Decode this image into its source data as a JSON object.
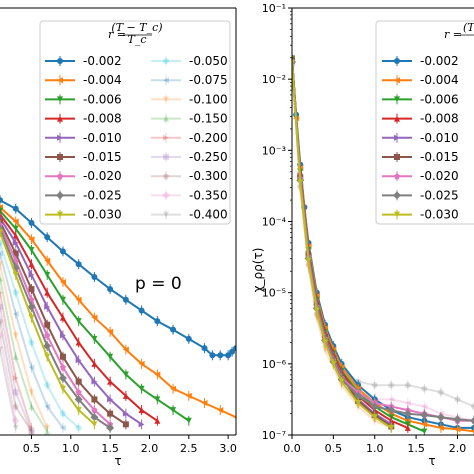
{
  "chart_data": [
    {
      "type": "line",
      "xlabel": "τ",
      "ylabel": "",
      "xlim": [
        0.1,
        3.1
      ],
      "xticks": [
        "0.5",
        "1.0",
        "1.5",
        "2.0",
        "2.5",
        "3.0"
      ],
      "annotation": "p = 0",
      "legend": {
        "title_lhs": "r = ",
        "title_num": "(T − T_c)",
        "title_den": "T_c",
        "placement": "upper-left"
      },
      "series": [
        {
          "name": "-0.002",
          "color": "#1f77b4",
          "alpha": 1.0,
          "x": [
            0.1,
            0.3,
            0.5,
            0.7,
            0.9,
            1.1,
            1.3,
            1.5,
            1.7,
            1.9,
            2.1,
            2.3,
            2.5,
            2.7,
            2.8,
            2.9,
            3.0,
            3.05,
            3.1
          ],
          "y": [
            -3.7,
            -3.82,
            -4.02,
            -4.22,
            -4.42,
            -4.6,
            -4.78,
            -4.95,
            -5.1,
            -5.25,
            -5.4,
            -5.52,
            -5.65,
            -5.78,
            -5.88,
            -5.88,
            -5.88,
            -5.83,
            -5.78
          ]
        },
        {
          "name": "-0.004",
          "color": "#ff7f0e",
          "alpha": 1.0,
          "x": [
            0.1,
            0.3,
            0.5,
            0.7,
            0.9,
            1.1,
            1.3,
            1.5,
            1.7,
            1.9,
            2.1,
            2.3,
            2.5,
            2.7,
            2.9,
            3.1
          ],
          "y": [
            -3.8,
            -4.0,
            -4.25,
            -4.55,
            -4.85,
            -5.1,
            -5.35,
            -5.55,
            -5.8,
            -6.0,
            -6.15,
            -6.35,
            -6.45,
            -6.55,
            -6.65,
            -6.75
          ]
        },
        {
          "name": "-0.006",
          "color": "#2ca02c",
          "alpha": 1.0,
          "x": [
            0.1,
            0.3,
            0.5,
            0.7,
            0.9,
            1.1,
            1.3,
            1.5,
            1.7,
            1.9,
            2.1,
            2.3,
            2.5
          ],
          "y": [
            -3.85,
            -4.1,
            -4.4,
            -4.75,
            -5.1,
            -5.4,
            -5.65,
            -5.9,
            -6.15,
            -6.35,
            -6.5,
            -6.65,
            -6.8
          ]
        },
        {
          "name": "-0.008",
          "color": "#d62728",
          "alpha": 1.0,
          "x": [
            0.1,
            0.3,
            0.5,
            0.7,
            0.9,
            1.1,
            1.3,
            1.5,
            1.7,
            1.9,
            2.1
          ],
          "y": [
            -3.9,
            -4.2,
            -4.6,
            -5.0,
            -5.35,
            -5.7,
            -6.0,
            -6.25,
            -6.45,
            -6.65,
            -6.8
          ]
        },
        {
          "name": "-0.010",
          "color": "#9467bd",
          "alpha": 1.0,
          "x": [
            0.1,
            0.3,
            0.5,
            0.7,
            0.9,
            1.1,
            1.3,
            1.5,
            1.7,
            1.9
          ],
          "y": [
            -3.95,
            -4.3,
            -4.75,
            -5.2,
            -5.6,
            -5.95,
            -6.25,
            -6.5,
            -6.7,
            -6.85
          ]
        },
        {
          "name": "-0.015",
          "color": "#8c564b",
          "alpha": 1.0,
          "x": [
            0.1,
            0.3,
            0.5,
            0.7,
            0.9,
            1.1,
            1.3,
            1.5,
            1.7
          ],
          "y": [
            -4.0,
            -4.45,
            -4.95,
            -5.45,
            -5.9,
            -6.25,
            -6.5,
            -6.7,
            -6.85
          ]
        },
        {
          "name": "-0.020",
          "color": "#e377c2",
          "alpha": 1.0,
          "x": [
            0.1,
            0.3,
            0.5,
            0.7,
            0.9,
            1.1,
            1.3,
            1.5
          ],
          "y": [
            -4.05,
            -4.55,
            -5.1,
            -5.6,
            -6.05,
            -6.4,
            -6.65,
            -6.85
          ]
        },
        {
          "name": "-0.025",
          "color": "#7f7f7f",
          "alpha": 1.0,
          "x": [
            0.1,
            0.3,
            0.5,
            0.7,
            0.9,
            1.1,
            1.3,
            1.5
          ],
          "y": [
            -4.1,
            -4.65,
            -5.2,
            -5.75,
            -6.2,
            -6.5,
            -6.75,
            -6.9
          ]
        },
        {
          "name": "-0.030",
          "color": "#bcbd22",
          "alpha": 1.0,
          "x": [
            0.1,
            0.3,
            0.5,
            0.7,
            0.9,
            1.1,
            1.3
          ],
          "y": [
            -4.15,
            -4.75,
            -5.35,
            -5.9,
            -6.35,
            -6.65,
            -6.85
          ]
        },
        {
          "name": "-0.050",
          "color": "#17becf",
          "alpha": 0.25,
          "x": [
            0.1,
            0.3,
            0.5,
            0.7,
            0.9,
            1.1
          ],
          "y": [
            -4.3,
            -5.0,
            -5.7,
            -6.3,
            -6.7,
            -6.9
          ]
        },
        {
          "name": "-0.075",
          "color": "#1f77b4",
          "alpha": 0.25,
          "x": [
            0.1,
            0.3,
            0.5,
            0.7,
            0.9
          ],
          "y": [
            -4.45,
            -5.3,
            -6.05,
            -6.6,
            -6.9
          ]
        },
        {
          "name": "-0.100",
          "color": "#ff7f0e",
          "alpha": 0.25,
          "x": [
            0.1,
            0.3,
            0.5,
            0.7
          ],
          "y": [
            -4.6,
            -5.6,
            -6.4,
            -6.9
          ]
        },
        {
          "name": "-0.150",
          "color": "#2ca02c",
          "alpha": 0.25,
          "x": [
            0.1,
            0.3,
            0.5,
            0.7
          ],
          "y": [
            -4.8,
            -5.9,
            -6.6,
            -6.95
          ]
        },
        {
          "name": "-0.200",
          "color": "#d62728",
          "alpha": 0.25,
          "x": [
            0.1,
            0.3,
            0.5
          ],
          "y": [
            -5.0,
            -6.2,
            -6.9
          ]
        },
        {
          "name": "-0.250",
          "color": "#9467bd",
          "alpha": 0.25,
          "x": [
            0.1,
            0.3,
            0.5
          ],
          "y": [
            -5.2,
            -6.4,
            -6.95
          ]
        },
        {
          "name": "-0.300",
          "color": "#8c564b",
          "alpha": 0.25,
          "x": [
            0.1,
            0.3,
            0.5
          ],
          "y": [
            -5.4,
            -6.6,
            -6.95
          ]
        },
        {
          "name": "-0.350",
          "color": "#e377c2",
          "alpha": 0.25,
          "x": [
            0.1,
            0.3
          ],
          "y": [
            -5.6,
            -6.8
          ]
        },
        {
          "name": "-0.400",
          "color": "#7f7f7f",
          "alpha": 0.25,
          "x": [
            0.1,
            0.3
          ],
          "y": [
            -5.8,
            -6.9
          ]
        }
      ]
    },
    {
      "type": "line",
      "xlabel": "τ",
      "ylabel": "χ_ρρ(τ)",
      "xlim": [
        0.0,
        2.2
      ],
      "ylim_log10": [
        -7,
        -1
      ],
      "xticks": [
        "0.0",
        "0.5",
        "1.0",
        "1.5",
        "2.0"
      ],
      "yticks": [
        "10⁻⁷",
        "10⁻⁶",
        "10⁻⁵",
        "10⁻⁴",
        "10⁻³",
        "10⁻²",
        "10⁻¹"
      ],
      "legend": {
        "title_lhs": "r = ",
        "title_num": "(T",
        "title_den": "",
        "placement": "upper-right"
      },
      "series": [
        {
          "name": "-0.002",
          "color": "#1f77b4",
          "alpha": 1.0,
          "x": [
            0.0,
            0.05,
            0.1,
            0.15,
            0.2,
            0.3,
            0.4,
            0.5,
            0.6,
            0.8,
            1.0,
            1.2,
            1.4,
            1.6,
            1.8,
            2.0,
            2.2
          ],
          "y": [
            -1.7,
            -2.5,
            -3.2,
            -3.8,
            -4.3,
            -5.0,
            -5.45,
            -5.75,
            -6.0,
            -6.3,
            -6.5,
            -6.65,
            -6.75,
            -6.8,
            -6.85,
            -6.9,
            -6.9
          ]
        },
        {
          "name": "-0.004",
          "color": "#ff7f0e",
          "alpha": 1.0,
          "x": [
            0.0,
            0.05,
            0.1,
            0.2,
            0.3,
            0.4,
            0.5,
            0.6,
            0.8,
            1.0,
            1.2,
            1.4,
            1.6,
            1.8,
            2.0,
            2.2
          ],
          "y": [
            -1.7,
            -2.55,
            -3.25,
            -4.35,
            -5.05,
            -5.5,
            -5.8,
            -6.05,
            -6.35,
            -6.55,
            -6.7,
            -6.8,
            -6.85,
            -6.9,
            -6.92,
            -6.95
          ]
        },
        {
          "name": "-0.006",
          "color": "#2ca02c",
          "alpha": 1.0,
          "x": [
            0.0,
            0.1,
            0.2,
            0.3,
            0.4,
            0.5,
            0.6,
            0.8,
            1.0,
            1.2,
            1.4,
            1.6
          ],
          "y": [
            -1.72,
            -3.3,
            -4.4,
            -5.1,
            -5.55,
            -5.85,
            -6.1,
            -6.4,
            -6.6,
            -6.75,
            -6.85,
            -6.95
          ]
        },
        {
          "name": "-0.008",
          "color": "#d62728",
          "alpha": 1.0,
          "x": [
            0.0,
            0.1,
            0.2,
            0.3,
            0.4,
            0.5,
            0.6,
            0.8,
            1.0,
            1.2,
            1.4
          ],
          "y": [
            -1.72,
            -3.32,
            -4.42,
            -5.12,
            -5.57,
            -5.87,
            -6.12,
            -6.45,
            -6.65,
            -6.8,
            -6.9
          ]
        },
        {
          "name": "-0.010",
          "color": "#9467bd",
          "alpha": 1.0,
          "x": [
            0.0,
            0.1,
            0.2,
            0.3,
            0.4,
            0.5,
            0.6,
            0.8,
            1.0,
            1.2
          ],
          "y": [
            -1.73,
            -3.35,
            -4.45,
            -5.15,
            -5.6,
            -5.9,
            -6.15,
            -6.5,
            -6.7,
            -6.85
          ]
        },
        {
          "name": "-0.015",
          "color": "#8c564b",
          "alpha": 1.0,
          "x": [
            0.0,
            0.1,
            0.2,
            0.3,
            0.4,
            0.5,
            0.6,
            0.8,
            1.0,
            1.2
          ],
          "y": [
            -1.74,
            -3.38,
            -4.48,
            -5.18,
            -5.62,
            -5.92,
            -6.18,
            -6.52,
            -6.72,
            -6.88
          ]
        },
        {
          "name": "-0.020",
          "color": "#e377c2",
          "alpha": 1.0,
          "x": [
            0.0,
            0.1,
            0.2,
            0.3,
            0.4,
            0.5,
            0.6,
            0.8,
            1.0,
            1.2,
            1.4,
            1.6,
            1.8,
            2.0,
            2.2
          ],
          "y": [
            -1.75,
            -3.4,
            -4.5,
            -5.2,
            -5.65,
            -5.95,
            -6.2,
            -6.4,
            -6.55,
            -6.6,
            -6.65,
            -6.7,
            -6.75,
            -6.8,
            -6.8
          ]
        },
        {
          "name": "-0.025",
          "color": "#7f7f7f",
          "alpha": 1.0,
          "x": [
            0.0,
            0.1,
            0.2,
            0.3,
            0.4,
            0.5,
            0.6,
            0.8,
            1.0,
            1.2,
            1.4,
            1.6,
            1.8,
            2.0,
            2.2
          ],
          "y": [
            -1.76,
            -3.42,
            -4.52,
            -5.22,
            -5.67,
            -5.97,
            -6.22,
            -6.45,
            -6.6,
            -6.65,
            -6.7,
            -6.72,
            -6.75,
            -6.78,
            -6.8
          ]
        },
        {
          "name": "-0.030",
          "color": "#bcbd22",
          "alpha": 1.0,
          "x": [
            0.0,
            0.1,
            0.2,
            0.3,
            0.4,
            0.5,
            0.6,
            0.8,
            1.0,
            1.2
          ],
          "y": [
            -1.77,
            -3.45,
            -4.55,
            -5.25,
            -5.7,
            -6.0,
            -6.25,
            -6.55,
            -6.75,
            -6.9
          ]
        },
        {
          "name": "",
          "color": "#7f7f7f",
          "alpha": 0.25,
          "x": [
            0.0,
            0.1,
            0.2,
            0.3,
            0.4,
            0.6,
            0.8,
            1.0,
            1.2,
            1.4,
            1.6,
            1.8,
            2.0,
            2.2
          ],
          "y": [
            -1.8,
            -3.5,
            -4.6,
            -5.3,
            -5.7,
            -6.1,
            -6.25,
            -6.3,
            -6.3,
            -6.3,
            -6.35,
            -6.4,
            -6.5,
            -6.6
          ]
        },
        {
          "name": "",
          "color": "#e377c2",
          "alpha": 0.25,
          "x": [
            0.0,
            0.1,
            0.2,
            0.3,
            0.4,
            0.6,
            0.8,
            1.0,
            1.2,
            1.4,
            1.6,
            1.8,
            2.0,
            2.2
          ],
          "y": [
            -1.8,
            -3.5,
            -4.6,
            -5.3,
            -5.75,
            -6.2,
            -6.4,
            -6.5,
            -6.5,
            -6.55,
            -6.6,
            -6.7,
            -6.75,
            -6.8
          ]
        },
        {
          "name": "",
          "color": "#ff7f0e",
          "alpha": 0.25,
          "x": [
            0.0,
            0.1,
            0.2,
            0.3,
            0.4,
            0.6,
            0.8,
            1.0,
            1.2
          ],
          "y": [
            -1.8,
            -3.55,
            -4.65,
            -5.35,
            -5.8,
            -6.3,
            -6.6,
            -6.8,
            -6.9
          ]
        }
      ]
    }
  ]
}
